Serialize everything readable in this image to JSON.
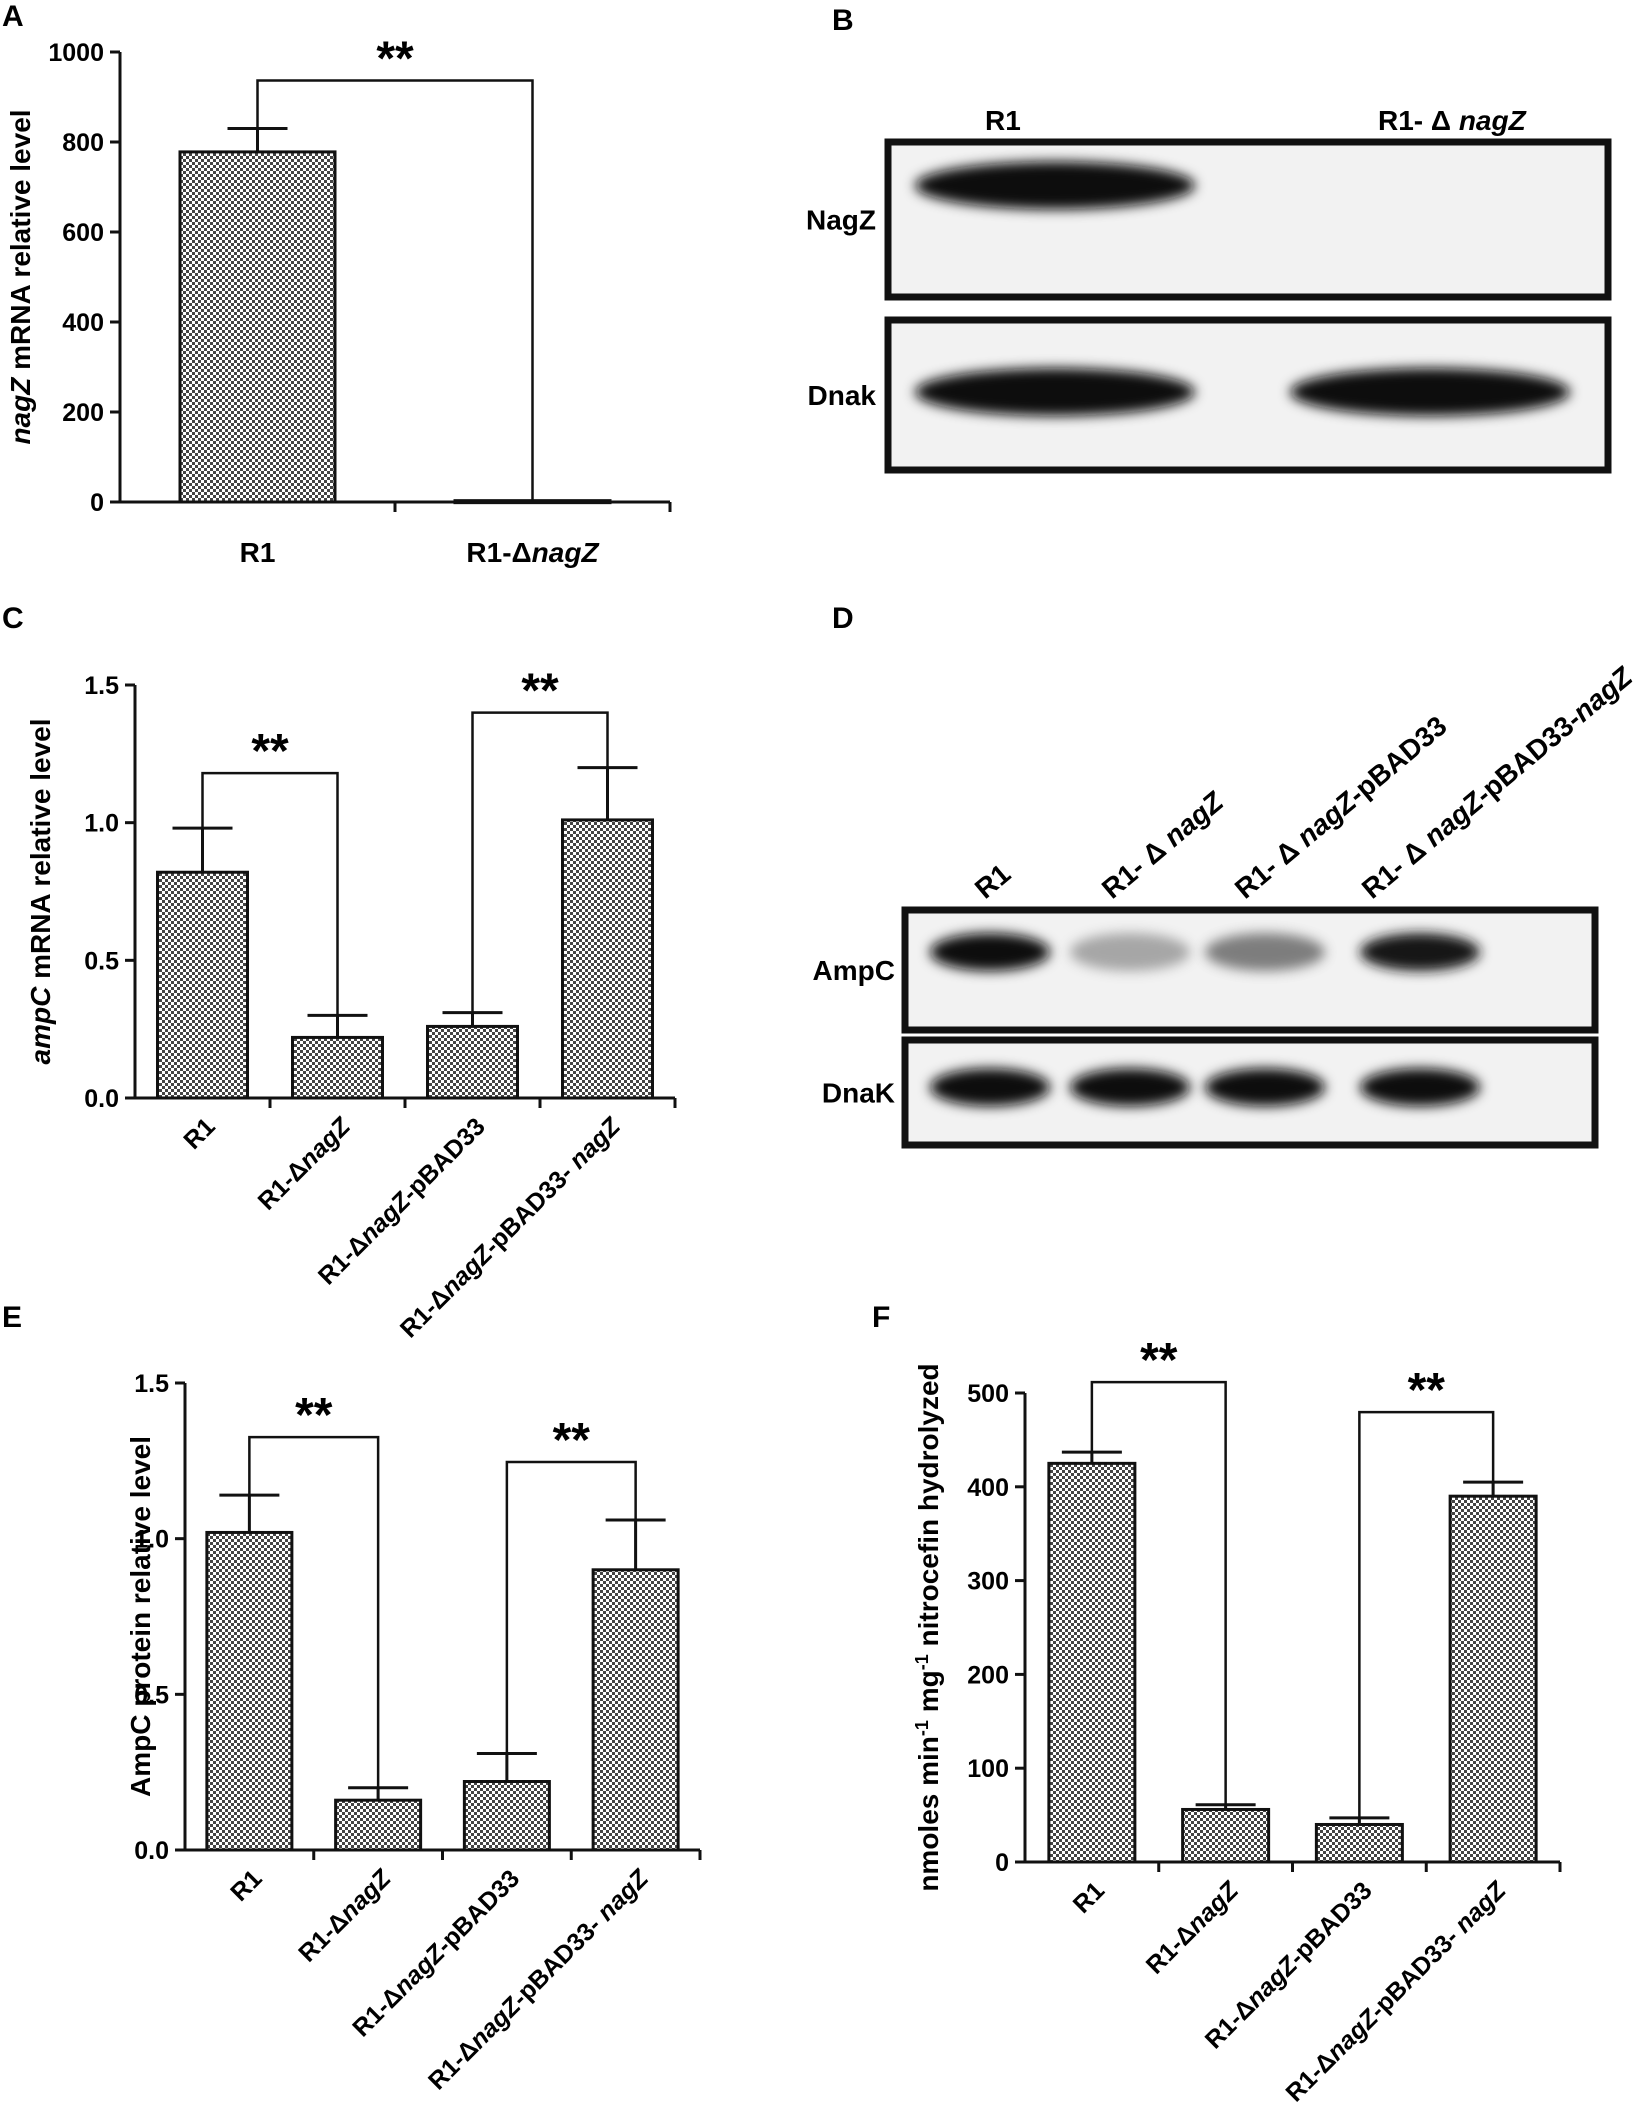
{
  "colors": {
    "bar_fill": "#9a9a9a",
    "axis": "#111111",
    "band": "#111111"
  },
  "chart_data": [
    {
      "panel": "A",
      "type": "bar",
      "categories": [
        "R1",
        "R1-ΔnagZ"
      ],
      "values": [
        778,
        3
      ],
      "errors": [
        52,
        0
      ],
      "ylabel": "nagZ mRNA relative level",
      "ylim": [
        0,
        1000
      ],
      "yticks": [
        "0",
        "200",
        "400",
        "600",
        "800",
        "1000"
      ],
      "significance": [
        {
          "from": 0,
          "to": 1,
          "label": "**"
        }
      ],
      "grid": false
    },
    {
      "panel": "C",
      "type": "bar",
      "categories": [
        "R1",
        "R1-ΔnagZ",
        "R1-ΔnagZ-pBAD33",
        "R1-ΔnagZ-pBAD33- nagZ"
      ],
      "values": [
        0.82,
        0.22,
        0.26,
        1.01
      ],
      "errors": [
        0.16,
        0.08,
        0.05,
        0.19
      ],
      "ylabel": "ampC mRNA relative level",
      "ylim": [
        0,
        1.5
      ],
      "yticks": [
        "0.0",
        "0.5",
        "1.0",
        "1.5"
      ],
      "significance": [
        {
          "from": 0,
          "to": 1,
          "label": "**"
        },
        {
          "from": 2,
          "to": 3,
          "label": "**"
        }
      ],
      "grid": false
    },
    {
      "panel": "E",
      "type": "bar",
      "categories": [
        "R1",
        "R1-ΔnagZ",
        "R1-ΔnagZ-pBAD33",
        "R1-ΔnagZ-pBAD33- nagZ"
      ],
      "values": [
        1.02,
        0.16,
        0.22,
        0.9
      ],
      "errors": [
        0.12,
        0.04,
        0.09,
        0.16
      ],
      "ylabel": "AmpC protein relative level",
      "ylim": [
        0,
        1.5
      ],
      "yticks": [
        "0.0",
        "0.5",
        "1.0",
        "1.5"
      ],
      "significance": [
        {
          "from": 0,
          "to": 1,
          "label": "**"
        },
        {
          "from": 2,
          "to": 3,
          "label": "**"
        }
      ],
      "grid": false
    },
    {
      "panel": "F",
      "type": "bar",
      "categories": [
        "R1",
        "R1-ΔnagZ",
        "R1-ΔnagZ-pBAD33",
        "R1-ΔnagZ-pBAD33- nagZ"
      ],
      "values": [
        425,
        56,
        40,
        390
      ],
      "errors": [
        12,
        5,
        7,
        15
      ],
      "ylabel": "nmoles min-1 mg-1 nitrocefin hydrolyzed",
      "ylim": [
        0,
        500
      ],
      "yticks": [
        "0",
        "100",
        "200",
        "300",
        "400",
        "500"
      ],
      "significance": [
        {
          "from": 0,
          "to": 1,
          "label": "**"
        },
        {
          "from": 2,
          "to": 3,
          "label": "**"
        }
      ],
      "grid": false
    }
  ],
  "blots": {
    "B": {
      "lanes": [
        "R1",
        "R1- Δ nagZ"
      ],
      "rows": [
        {
          "label": "NagZ",
          "intensity": [
            1.0,
            0.0
          ]
        },
        {
          "label": "Dnak",
          "intensity": [
            1.0,
            1.0
          ]
        }
      ]
    },
    "D": {
      "lanes": [
        "R1",
        "R1- Δ nagZ",
        "R1- Δ nagZ-pBAD33",
        "R1- Δ nagZ-pBAD33-nagZ"
      ],
      "rows": [
        {
          "label": "AmpC",
          "intensity": [
            1.0,
            0.35,
            0.5,
            0.95
          ]
        },
        {
          "label": "DnaK",
          "intensity": [
            1.0,
            1.0,
            1.0,
            1.0
          ]
        }
      ]
    }
  },
  "panel_letters": [
    "A",
    "B",
    "C",
    "D",
    "E",
    "F"
  ]
}
